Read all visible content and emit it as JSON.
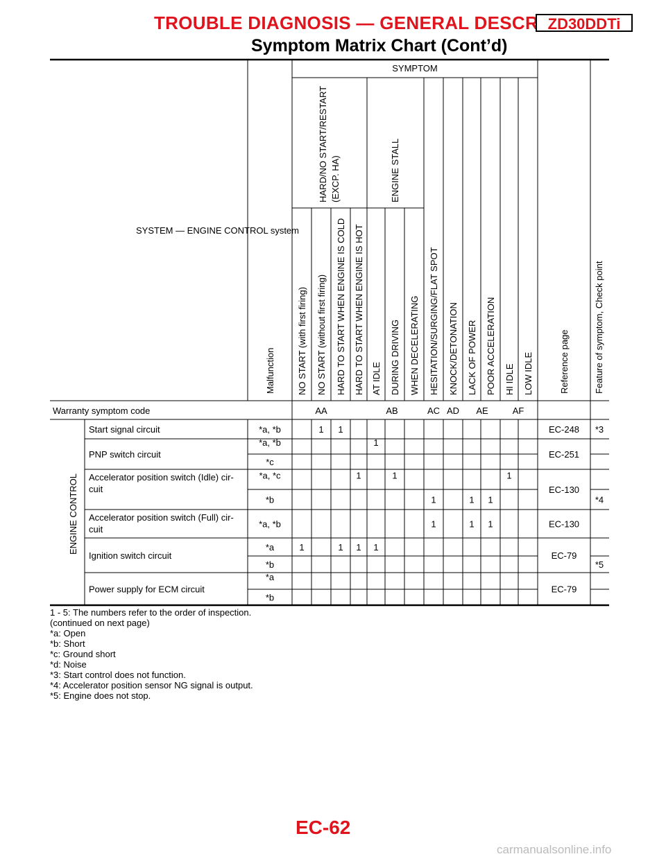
{
  "header": {
    "section_title": "TROUBLE DIAGNOSIS — GENERAL DESCRIPTION",
    "engine_code": "ZD30DDTi",
    "subtitle": "Symptom Matrix Chart (Cont’d)"
  },
  "table": {
    "system_label": "SYSTEM — ENGINE CONTROL system",
    "malfunction_label": "Malfunction",
    "symptom_label": "SYMPTOM",
    "group_hard_start": [
      "HARD/NO START/RESTART",
      "(EXCP. HA)"
    ],
    "group_engine_stall": "ENGINE STALL",
    "symptom_columns": [
      "NO START (with first firing)",
      "NO START (without first firing)",
      "HARD TO START WHEN ENGINE IS COLD",
      "HARD TO START WHEN ENGINE IS HOT",
      "AT IDLE",
      "DURING DRIVING",
      "WHEN DECELERATING",
      "HESITATION/SURGING/FLAT SPOT",
      "KNOCK/DETONATION",
      "LACK OF POWER",
      "POOR ACCELERATION",
      "HI IDLE",
      "LOW IDLE"
    ],
    "reference_label": "Reference page",
    "feature_label": "Feature of symptom, Check point",
    "warranty_label": "Warranty symptom code",
    "warranty_codes": [
      "AA",
      "AB",
      "AC",
      "AD",
      "AE",
      "AF"
    ],
    "group_label": "ENGINE CONTROL",
    "rows": [
      {
        "item": "Start signal circuit",
        "malfunction": "*a, *b",
        "marks": [
          "",
          "1",
          "1",
          "",
          "",
          "",
          "",
          "",
          "",
          "",
          "",
          "",
          ""
        ],
        "reference": "EC-248",
        "feature": "*3"
      },
      {
        "item": "PNP switch circuit",
        "malfunction": "*a, *b",
        "marks": [
          "",
          "",
          "",
          "",
          "1",
          "",
          "",
          "",
          "",
          "",
          "",
          "",
          ""
        ],
        "reference": "EC-251",
        "feature": ""
      },
      {
        "item": "",
        "malfunction": "*c",
        "marks": [
          "",
          "",
          "",
          "",
          "",
          "",
          "",
          "",
          "",
          "",
          "",
          "",
          ""
        ],
        "reference": "",
        "feature": ""
      },
      {
        "item": "Accelerator position switch (Idle) cir-cuit",
        "item_lines": [
          "Accelerator position switch (Idle) cir-",
          "cuit"
        ],
        "malfunction": "*a, *c",
        "marks": [
          "",
          "",
          "",
          "1",
          "",
          "1",
          "",
          "",
          "",
          "",
          "",
          "1",
          ""
        ],
        "reference": "EC-130",
        "feature": ""
      },
      {
        "item": "",
        "malfunction": "*b",
        "marks": [
          "",
          "",
          "",
          "",
          "",
          "",
          "",
          "1",
          "",
          "1",
          "1",
          "",
          ""
        ],
        "reference": "",
        "feature": "*4"
      },
      {
        "item": "Accelerator position switch (Full) cir-cuit",
        "item_lines": [
          "Accelerator position switch (Full) cir-",
          "cuit"
        ],
        "malfunction": "*a, *b",
        "marks": [
          "",
          "",
          "",
          "",
          "",
          "",
          "",
          "1",
          "",
          "1",
          "1",
          "",
          ""
        ],
        "reference": "EC-130",
        "feature": ""
      },
      {
        "item": "Ignition switch circuit",
        "malfunction": "*a",
        "marks": [
          "1",
          "",
          "1",
          "1",
          "1",
          "",
          "",
          "",
          "",
          "",
          "",
          "",
          ""
        ],
        "reference": "EC-79",
        "feature": ""
      },
      {
        "item": "",
        "malfunction": "*b",
        "marks": [
          "",
          "",
          "",
          "",
          "",
          "",
          "",
          "",
          "",
          "",
          "",
          "",
          ""
        ],
        "reference": "",
        "feature": "*5"
      },
      {
        "item": "Power supply for ECM circuit",
        "malfunction": "*a",
        "marks": [
          "",
          "",
          "",
          "",
          "",
          "",
          "",
          "",
          "",
          "",
          "",
          "",
          ""
        ],
        "reference": "EC-79",
        "feature": ""
      },
      {
        "item": "",
        "malfunction": "*b",
        "marks": [
          "",
          "",
          "",
          "",
          "",
          "",
          "",
          "",
          "",
          "",
          "",
          "",
          ""
        ],
        "reference": "",
        "feature": ""
      }
    ]
  },
  "notes": [
    "1 - 5: The numbers refer to the order of inspection.",
    "(continued on next page)",
    "*a: Open",
    "*b: Short",
    "*c: Ground short",
    "*d: Noise",
    "*3: Start control does not function.",
    "*4: Accelerator position sensor NG signal is output.",
    "*5: Engine does not stop."
  ],
  "footer": {
    "page_number": "EC-62",
    "watermark": "carmanualsonline.info"
  }
}
